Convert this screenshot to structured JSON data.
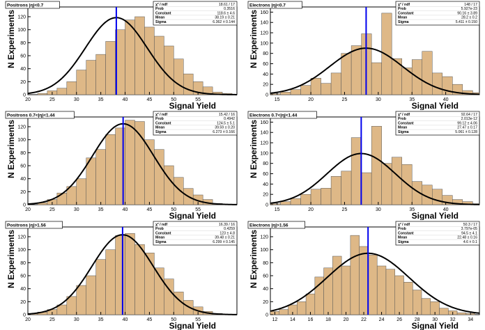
{
  "chart_data": [
    {
      "type": "bar",
      "title": "Positrons |η|<0.7",
      "xlabel": "Signal Yield",
      "ylabel": "N Experiments",
      "xlim": [
        20,
        63
      ],
      "ylim": [
        0,
        135
      ],
      "xticks": [
        "20",
        "25",
        "30",
        "35",
        "40",
        "45",
        "50",
        "55"
      ],
      "yticks": [
        "0",
        "20",
        "40",
        "60",
        "80",
        "100",
        "120"
      ],
      "bin_width": 2,
      "bins_start": 20,
      "values": [
        0,
        2,
        6,
        10,
        20,
        38,
        53,
        62,
        82,
        100,
        115,
        120,
        104,
        90,
        75,
        55,
        32,
        20,
        12,
        4,
        2,
        0
      ],
      "fit_mean": 38.19,
      "fit_sigma": 6.362,
      "fit_constant": 118.6,
      "mean_line": 38.19,
      "stats": {
        "rows": [
          {
            "label": "χ² / ndf",
            "value": "18.61 / 17"
          },
          {
            "label": "Prob",
            "value": "0.3516"
          },
          {
            "label": "Constant",
            "value": "118.6 ± 4.6"
          },
          {
            "label": "Mean",
            "value": "38.19 ± 0.21"
          },
          {
            "label": "Sigma",
            "value": "6.362 ± 0.144"
          }
        ]
      }
    },
    {
      "type": "bar",
      "title": "Electrons |η|<0.7",
      "xlabel": "Signal Yield",
      "ylabel": "N Experiments",
      "xlim": [
        14,
        45
      ],
      "ylim": [
        0,
        170
      ],
      "xticks": [
        "15",
        "20",
        "25",
        "30",
        "35",
        "40"
      ],
      "yticks": [
        "0",
        "20",
        "40",
        "60",
        "80",
        "100",
        "120",
        "140",
        "160"
      ],
      "bin_width": 1.5,
      "bins_start": 14,
      "values": [
        2,
        5,
        10,
        18,
        32,
        22,
        42,
        80,
        95,
        118,
        62,
        158,
        70,
        52,
        68,
        84,
        42,
        35,
        20,
        8,
        4
      ],
      "fit_mean": 28.2,
      "fit_sigma": 5.411,
      "fit_constant": 90.16,
      "mean_line": 28.2,
      "stats": {
        "rows": [
          {
            "label": "χ² / ndf",
            "value": "148 / 17"
          },
          {
            "label": "Prob",
            "value": "5.927e-23"
          },
          {
            "label": "Constant",
            "value": "90.16 ± 3.89"
          },
          {
            "label": "Mean",
            "value": "28.2 ± 0.2"
          },
          {
            "label": "Sigma",
            "value": "5.411 ± 0.150"
          }
        ]
      }
    },
    {
      "type": "bar",
      "title": "Positrons 0.7<|η|<1.44",
      "xlabel": "Signal Yield",
      "ylabel": "N Experiments",
      "xlim": [
        20,
        63
      ],
      "ylim": [
        0,
        135
      ],
      "xticks": [
        "20",
        "25",
        "30",
        "35",
        "40",
        "45",
        "50",
        "55"
      ],
      "yticks": [
        "0",
        "20",
        "40",
        "60",
        "80",
        "100",
        "120"
      ],
      "bin_width": 2,
      "bins_start": 20,
      "values": [
        0,
        3,
        8,
        18,
        28,
        40,
        72,
        85,
        108,
        118,
        130,
        128,
        100,
        85,
        60,
        42,
        25,
        15,
        8,
        2,
        0,
        0
      ],
      "fit_mean": 39.59,
      "fit_sigma": 6.273,
      "fit_constant": 124.5,
      "mean_line": 39.59,
      "stats": {
        "rows": [
          {
            "label": "χ² / ndf",
            "value": "15.42 / 16"
          },
          {
            "label": "Prob",
            "value": "0.4942"
          },
          {
            "label": "Constant",
            "value": "124.5 ± 5.1"
          },
          {
            "label": "Mean",
            "value": "39.59 ± 0.20"
          },
          {
            "label": "Sigma",
            "value": "6.273 ± 0.166"
          }
        ]
      }
    },
    {
      "type": "bar",
      "title": "Electrons 0.7<|η|<1.44",
      "xlabel": "Signal Yield",
      "ylabel": "N Experiments",
      "xlim": [
        14,
        45
      ],
      "ylim": [
        0,
        170
      ],
      "xticks": [
        "15",
        "20",
        "25",
        "30",
        "35",
        "40"
      ],
      "yticks": [
        "0",
        "20",
        "40",
        "60",
        "80",
        "100",
        "120",
        "140",
        "160"
      ],
      "bin_width": 1.5,
      "bins_start": 14,
      "values": [
        2,
        6,
        12,
        20,
        30,
        32,
        55,
        65,
        130,
        62,
        152,
        80,
        92,
        78,
        45,
        38,
        30,
        18,
        10,
        6,
        2
      ],
      "fit_mean": 27.47,
      "fit_sigma": 5.061,
      "fit_constant": 99.12,
      "mean_line": 27.47,
      "stats": {
        "rows": [
          {
            "label": "χ² / ndf",
            "value": "92.64 / 17"
          },
          {
            "label": "Prob",
            "value": "2.013e-12"
          },
          {
            "label": "Constant",
            "value": "99.12 ± 4.06"
          },
          {
            "label": "Mean",
            "value": "27.47 ± 0.17"
          },
          {
            "label": "Sigma",
            "value": "5.061 ± 0.128"
          }
        ]
      }
    },
    {
      "type": "bar",
      "title": "Positrons |η|>1.56",
      "xlabel": "Signal Yield",
      "ylabel": "N Experiments",
      "xlim": [
        20,
        63
      ],
      "ylim": [
        0,
        135
      ],
      "xticks": [
        "20",
        "25",
        "30",
        "35",
        "40",
        "45",
        "50",
        "55"
      ],
      "yticks": [
        "0",
        "20",
        "40",
        "60",
        "80",
        "100",
        "120"
      ],
      "bin_width": 2,
      "bins_start": 20,
      "values": [
        2,
        4,
        8,
        15,
        28,
        45,
        60,
        85,
        100,
        122,
        125,
        108,
        95,
        72,
        55,
        35,
        22,
        12,
        5,
        2,
        0,
        0
      ],
      "fit_mean": 39.48,
      "fit_sigma": 6.299,
      "fit_constant": 123,
      "mean_line": 39.48,
      "stats": {
        "rows": [
          {
            "label": "χ² / ndf",
            "value": "16.39 / 16"
          },
          {
            "label": "Prob",
            "value": "0.4259"
          },
          {
            "label": "Constant",
            "value": "123 ± 4.8"
          },
          {
            "label": "Mean",
            "value": "39.48 ± 0.21"
          },
          {
            "label": "Sigma",
            "value": "6.299 ± 0.145"
          }
        ]
      }
    },
    {
      "type": "bar",
      "title": "Electrons |η|>1.56",
      "xlabel": "Signal Yield",
      "ylabel": "N Experiments",
      "xlim": [
        11.5,
        35
      ],
      "ylim": [
        0,
        135
      ],
      "xticks": [
        "12",
        "14",
        "16",
        "18",
        "20",
        "22",
        "24",
        "26",
        "28",
        "30",
        "32",
        "34"
      ],
      "yticks": [
        "0",
        "20",
        "40",
        "60",
        "80",
        "100",
        "120"
      ],
      "bin_width": 1,
      "bins_start": 11.5,
      "values": [
        5,
        8,
        15,
        20,
        32,
        58,
        72,
        90,
        75,
        122,
        105,
        92,
        75,
        70,
        60,
        50,
        38,
        25,
        20,
        10,
        6,
        3,
        2
      ],
      "fit_mean": 22.48,
      "fit_sigma": 4.6,
      "fit_constant": 94.5,
      "mean_line": 22.48,
      "stats": {
        "rows": [
          {
            "label": "χ² / ndf",
            "value": "50.3 / 17"
          },
          {
            "label": "Prob",
            "value": "3.797e-05"
          },
          {
            "label": "Constant",
            "value": "94.5 ± 4.1"
          },
          {
            "label": "Mean",
            "value": "22.48 ± 0.16"
          },
          {
            "label": "Sigma",
            "value": "4.6 ± 0.1"
          }
        ]
      }
    }
  ],
  "colors": {
    "fill": "#deb887",
    "line": "#000000",
    "mean_line": "#0000ee"
  }
}
